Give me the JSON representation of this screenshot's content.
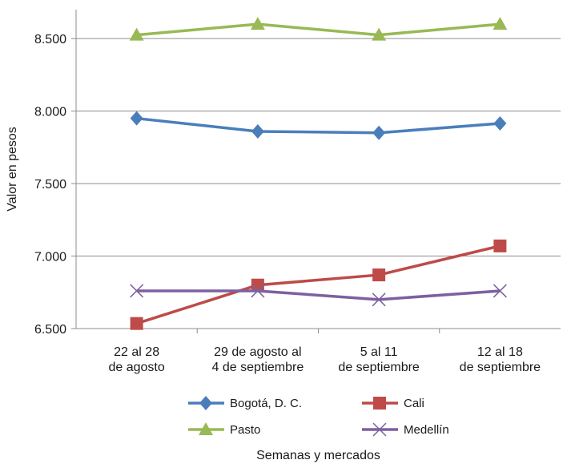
{
  "chart_data": {
    "type": "line",
    "title": "",
    "xlabel": "Semanas y mercados",
    "ylabel": "Valor en pesos",
    "categories": [
      [
        "22 al 28",
        "de agosto"
      ],
      [
        "29 de agosto al",
        "4 de septiembre"
      ],
      [
        "5 al 11",
        "de septiembre"
      ],
      [
        "12 al 18",
        "de septiembre"
      ]
    ],
    "ylim": [
      6500,
      8700
    ],
    "yticks": [
      6500,
      7000,
      7500,
      8000,
      8500
    ],
    "ytick_labels": [
      "6.500",
      "7.000",
      "7.500",
      "8.000",
      "8.500"
    ],
    "grid": "horizontal",
    "legend_position": "bottom",
    "series": [
      {
        "name": "Bogotá, D. C.",
        "color": "#4a7ebb",
        "marker": "diamond",
        "values": [
          7950,
          7860,
          7850,
          7915
        ]
      },
      {
        "name": "Cali",
        "color": "#be4b48",
        "marker": "square",
        "values": [
          6535,
          6800,
          6870,
          7070
        ]
      },
      {
        "name": "Pasto",
        "color": "#98b954",
        "marker": "triangle",
        "values": [
          8525,
          8600,
          8525,
          8600
        ]
      },
      {
        "name": "Medellín",
        "color": "#7d60a0",
        "marker": "x",
        "values": [
          6760,
          6760,
          6700,
          6760
        ]
      }
    ]
  }
}
